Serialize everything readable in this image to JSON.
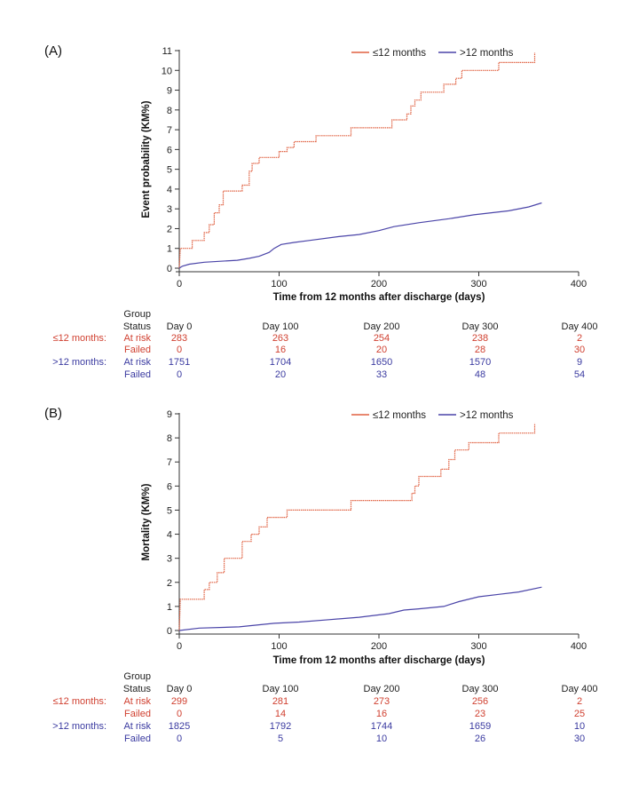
{
  "chart_data": [
    {
      "type": "line",
      "panel_label": "(A)",
      "xlabel": "Time from 12 months after discharge (days)",
      "ylabel": "Event probability (KM%)",
      "xlim": [
        0,
        400
      ],
      "ylim": [
        0,
        11
      ],
      "xticks": [
        0,
        100,
        200,
        300,
        400
      ],
      "yticks": [
        0,
        1,
        2,
        3,
        4,
        5,
        6,
        7,
        8,
        9,
        10,
        11
      ],
      "legend_position": "top-right",
      "series": [
        {
          "name": "≤12 months",
          "color": "#e06040",
          "points": [
            [
              0,
              0
            ],
            [
              1,
              1
            ],
            [
              13,
              1
            ],
            [
              13,
              1.4
            ],
            [
              25,
              1.4
            ],
            [
              25,
              1.8
            ],
            [
              30,
              1.8
            ],
            [
              30,
              2.2
            ],
            [
              35,
              2.2
            ],
            [
              35,
              2.8
            ],
            [
              40,
              2.8
            ],
            [
              40,
              3.2
            ],
            [
              44,
              3.2
            ],
            [
              44,
              3.9
            ],
            [
              63,
              3.9
            ],
            [
              63,
              4.2
            ],
            [
              70,
              4.2
            ],
            [
              70,
              4.9
            ],
            [
              73,
              4.9
            ],
            [
              73,
              5.3
            ],
            [
              80,
              5.3
            ],
            [
              80,
              5.6
            ],
            [
              100,
              5.6
            ],
            [
              100,
              5.9
            ],
            [
              108,
              5.9
            ],
            [
              108,
              6.1
            ],
            [
              115,
              6.1
            ],
            [
              115,
              6.4
            ],
            [
              137,
              6.4
            ],
            [
              137,
              6.7
            ],
            [
              172,
              6.7
            ],
            [
              172,
              7.1
            ],
            [
              213,
              7.1
            ],
            [
              213,
              7.5
            ],
            [
              228,
              7.5
            ],
            [
              228,
              7.8
            ],
            [
              232,
              7.8
            ],
            [
              232,
              8.2
            ],
            [
              236,
              8.2
            ],
            [
              236,
              8.5
            ],
            [
              242,
              8.5
            ],
            [
              242,
              8.9
            ],
            [
              265,
              8.9
            ],
            [
              265,
              9.3
            ],
            [
              277,
              9.3
            ],
            [
              277,
              9.6
            ],
            [
              283,
              9.6
            ],
            [
              283,
              10
            ],
            [
              320,
              10
            ],
            [
              320,
              10.4
            ],
            [
              356,
              10.4
            ],
            [
              356,
              10.9
            ]
          ]
        },
        {
          "name": ">12 months",
          "color": "#4a44a8",
          "points": [
            [
              0,
              0
            ],
            [
              3,
              0.1
            ],
            [
              10,
              0.2
            ],
            [
              25,
              0.3
            ],
            [
              58,
              0.4
            ],
            [
              70,
              0.5
            ],
            [
              80,
              0.6
            ],
            [
              90,
              0.8
            ],
            [
              95,
              1
            ],
            [
              102,
              1.2
            ],
            [
              115,
              1.3
            ],
            [
              130,
              1.4
            ],
            [
              160,
              1.6
            ],
            [
              180,
              1.7
            ],
            [
              200,
              1.9
            ],
            [
              215,
              2.1
            ],
            [
              240,
              2.3
            ],
            [
              270,
              2.5
            ],
            [
              295,
              2.7
            ],
            [
              330,
              2.9
            ],
            [
              350,
              3.1
            ],
            [
              363,
              3.3
            ]
          ]
        }
      ],
      "risk_table": {
        "header_group": "Group",
        "header_status": "Status",
        "days": [
          "Day 0",
          "Day 100",
          "Day 200",
          "Day 300",
          "Day 400"
        ],
        "rows": [
          {
            "group": "≤12 months:",
            "status": "At risk",
            "values": [
              "283",
              "263",
              "254",
              "238",
              "2"
            ],
            "color": "#d04030"
          },
          {
            "group": "",
            "status": "Failed",
            "values": [
              "0",
              "16",
              "20",
              "28",
              "30"
            ],
            "color": "#d04030"
          },
          {
            "group": ">12 months:",
            "status": "At risk",
            "values": [
              "1751",
              "1704",
              "1650",
              "1570",
              "9"
            ],
            "color": "#3a3aa0"
          },
          {
            "group": "",
            "status": "Failed",
            "values": [
              "0",
              "20",
              "33",
              "48",
              "54"
            ],
            "color": "#3a3aa0"
          }
        ]
      }
    },
    {
      "type": "line",
      "panel_label": "(B)",
      "xlabel": "Time from 12 months after discharge (days)",
      "ylabel": "Mortality (KM%)",
      "xlim": [
        0,
        400
      ],
      "ylim": [
        0,
        9
      ],
      "xticks": [
        0,
        100,
        200,
        300,
        400
      ],
      "yticks": [
        0,
        1,
        2,
        3,
        4,
        5,
        6,
        7,
        8,
        9
      ],
      "legend_position": "top-right",
      "series": [
        {
          "name": "≤12 months",
          "color": "#e06040",
          "points": [
            [
              0,
              0
            ],
            [
              1,
              1.3
            ],
            [
              25,
              1.3
            ],
            [
              25,
              1.7
            ],
            [
              30,
              1.7
            ],
            [
              30,
              2
            ],
            [
              38,
              2
            ],
            [
              38,
              2.4
            ],
            [
              45,
              2.4
            ],
            [
              45,
              3
            ],
            [
              63,
              3
            ],
            [
              63,
              3.7
            ],
            [
              72,
              3.7
            ],
            [
              72,
              4
            ],
            [
              80,
              4
            ],
            [
              80,
              4.3
            ],
            [
              88,
              4.3
            ],
            [
              88,
              4.7
            ],
            [
              108,
              4.7
            ],
            [
              108,
              5
            ],
            [
              172,
              5
            ],
            [
              172,
              5.4
            ],
            [
              233,
              5.4
            ],
            [
              233,
              5.7
            ],
            [
              236,
              5.7
            ],
            [
              236,
              6
            ],
            [
              240,
              6
            ],
            [
              240,
              6.4
            ],
            [
              262,
              6.4
            ],
            [
              262,
              6.7
            ],
            [
              270,
              6.7
            ],
            [
              270,
              7.1
            ],
            [
              276,
              7.1
            ],
            [
              276,
              7.5
            ],
            [
              290,
              7.5
            ],
            [
              290,
              7.8
            ],
            [
              320,
              7.8
            ],
            [
              320,
              8.2
            ],
            [
              356,
              8.2
            ],
            [
              356,
              8.6
            ]
          ]
        },
        {
          "name": ">12 months",
          "color": "#4a44a8",
          "points": [
            [
              0,
              0
            ],
            [
              20,
              0.1
            ],
            [
              60,
              0.15
            ],
            [
              95,
              0.3
            ],
            [
              120,
              0.35
            ],
            [
              150,
              0.45
            ],
            [
              180,
              0.55
            ],
            [
              210,
              0.7
            ],
            [
              225,
              0.85
            ],
            [
              240,
              0.9
            ],
            [
              265,
              1
            ],
            [
              280,
              1.2
            ],
            [
              300,
              1.4
            ],
            [
              320,
              1.5
            ],
            [
              340,
              1.6
            ],
            [
              363,
              1.8
            ]
          ]
        }
      ],
      "risk_table": {
        "header_group": "Group",
        "header_status": "Status",
        "days": [
          "Day 0",
          "Day 100",
          "Day 200",
          "Day 300",
          "Day 400"
        ],
        "rows": [
          {
            "group": "≤12 months:",
            "status": "At risk",
            "values": [
              "299",
              "281",
              "273",
              "256",
              "2"
            ],
            "color": "#d04030"
          },
          {
            "group": "",
            "status": "Failed",
            "values": [
              "0",
              "14",
              "16",
              "23",
              "25"
            ],
            "color": "#d04030"
          },
          {
            "group": ">12 months:",
            "status": "At risk",
            "values": [
              "1825",
              "1792",
              "1744",
              "1659",
              "10"
            ],
            "color": "#3a3aa0"
          },
          {
            "group": "",
            "status": "Failed",
            "values": [
              "0",
              "5",
              "10",
              "26",
              "30"
            ],
            "color": "#3a3aa0"
          }
        ]
      }
    }
  ]
}
